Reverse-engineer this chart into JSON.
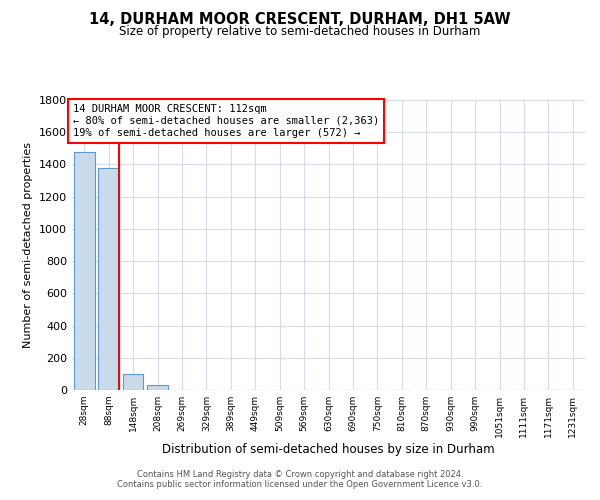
{
  "title": "14, DURHAM MOOR CRESCENT, DURHAM, DH1 5AW",
  "subtitle": "Size of property relative to semi-detached houses in Durham",
  "xlabel": "Distribution of semi-detached houses by size in Durham",
  "ylabel": "Number of semi-detached properties",
  "categories": [
    "28sqm",
    "88sqm",
    "148sqm",
    "208sqm",
    "269sqm",
    "329sqm",
    "389sqm",
    "449sqm",
    "509sqm",
    "569sqm",
    "630sqm",
    "690sqm",
    "750sqm",
    "810sqm",
    "870sqm",
    "930sqm",
    "990sqm",
    "1051sqm",
    "1111sqm",
    "1171sqm",
    "1231sqm"
  ],
  "values": [
    1480,
    1380,
    100,
    30,
    0,
    0,
    0,
    0,
    0,
    0,
    0,
    0,
    0,
    0,
    0,
    0,
    0,
    0,
    0,
    0,
    0
  ],
  "bar_color": "#c9daea",
  "bar_edge_color": "#5b9bd5",
  "property_line_bin": 1,
  "pct_smaller": 80,
  "count_smaller": "2,363",
  "pct_larger": 19,
  "count_larger": 572,
  "ylim": [
    0,
    1800
  ],
  "yticks": [
    0,
    200,
    400,
    600,
    800,
    1000,
    1200,
    1400,
    1600,
    1800
  ],
  "annotation_line1": "14 DURHAM MOOR CRESCENT: 112sqm",
  "annotation_line2": "← 80% of semi-detached houses are smaller (2,363)",
  "annotation_line3": "19% of semi-detached houses are larger (572) →",
  "footer1": "Contains HM Land Registry data © Crown copyright and database right 2024.",
  "footer2": "Contains public sector information licensed under the Open Government Licence v3.0.",
  "bg_color": "#ffffff",
  "grid_color": "#d3dce8",
  "title_fontsize": 10.5,
  "subtitle_fontsize": 8.5,
  "ylabel_fontsize": 8,
  "xlabel_fontsize": 8.5,
  "ytick_fontsize": 8,
  "xtick_fontsize": 6.5,
  "annotation_fontsize": 7.5,
  "footer_fontsize": 6.0
}
